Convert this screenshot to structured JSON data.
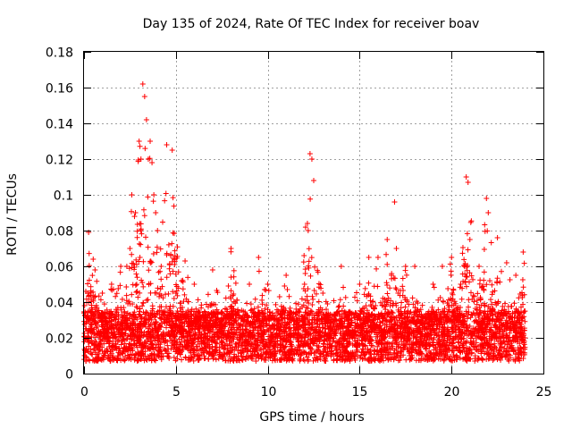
{
  "chart_data": {
    "type": "scatter",
    "title": "Day 135 of 2024, Rate Of TEC Index for receiver boav",
    "xlabel": "GPS time / hours",
    "ylabel": "ROTI / TECUs",
    "xlim": [
      0,
      25
    ],
    "ylim": [
      0,
      0.18
    ],
    "xticks": [
      0,
      5,
      10,
      15,
      20,
      25
    ],
    "yticks": [
      0,
      0.02,
      0.04,
      0.06,
      0.08,
      0.1,
      0.12,
      0.14,
      0.16,
      0.18
    ],
    "xtick_labels": [
      "0",
      "5",
      "10",
      "15",
      "20",
      "25"
    ],
    "ytick_labels": [
      "0",
      "0.02",
      "0.04",
      "0.06",
      "0.08",
      "0.1",
      "0.12",
      "0.14",
      "0.16",
      "0.18"
    ],
    "grid": true,
    "marker": "+",
    "color": "#ff0000",
    "x_range_of_data": [
      0,
      24
    ],
    "series": [
      {
        "x": [
          0.1,
          0.2,
          0.25,
          0.5,
          0.6,
          1.0,
          1.5,
          2.0,
          2.5,
          2.6,
          2.8,
          3.0,
          3.1,
          3.2,
          3.3,
          3.4,
          3.5,
          3.6,
          3.7,
          3.8,
          3.9,
          4.0,
          4.2,
          4.5,
          4.8,
          5.0,
          5.5,
          6.0,
          7.0,
          8.0,
          9.0,
          9.5,
          10.0,
          11.0,
          12.0,
          12.2,
          12.3,
          12.4,
          12.5,
          13.0,
          14.0,
          15.0,
          15.5,
          16.0,
          16.5,
          16.9,
          17.0,
          17.5,
          18.0,
          19.0,
          19.5,
          20.0,
          20.5,
          20.8,
          20.9,
          21.0,
          21.5,
          21.9,
          22.0,
          22.5,
          23.0,
          23.5,
          23.9,
          24.0
        ],
        "y": [
          0.02,
          0.045,
          0.079,
          0.064,
          0.058,
          0.045,
          0.05,
          0.06,
          0.07,
          0.1,
          0.09,
          0.13,
          0.12,
          0.162,
          0.155,
          0.142,
          0.12,
          0.13,
          0.118,
          0.1,
          0.09,
          0.08,
          0.06,
          0.128,
          0.125,
          0.045,
          0.063,
          0.05,
          0.058,
          0.07,
          0.05,
          0.065,
          0.05,
          0.055,
          0.05,
          0.08,
          0.123,
          0.12,
          0.108,
          0.045,
          0.06,
          0.05,
          0.065,
          0.065,
          0.075,
          0.096,
          0.07,
          0.06,
          0.06,
          0.05,
          0.06,
          0.065,
          0.05,
          0.11,
          0.107,
          0.075,
          0.06,
          0.098,
          0.09,
          0.076,
          0.062,
          0.055,
          0.068,
          0.02
        ]
      }
    ]
  }
}
